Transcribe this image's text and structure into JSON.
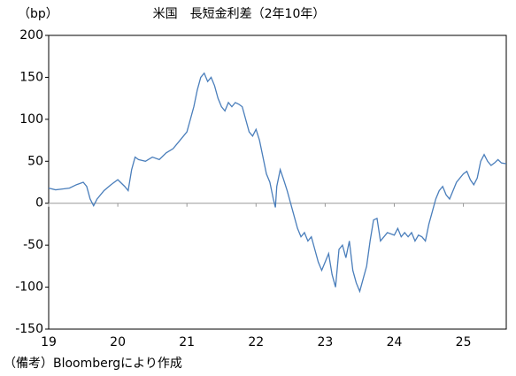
{
  "chart_data": {
    "type": "line",
    "title": "米国　長短金利差（2年10年）",
    "y_label": "（bp）",
    "note": "（備考）Bloombergにより作成",
    "x": [
      19.0,
      19.1,
      19.2,
      19.3,
      19.4,
      19.5,
      19.55,
      19.6,
      19.65,
      19.7,
      19.8,
      19.9,
      20.0,
      20.1,
      20.15,
      20.2,
      20.25,
      20.3,
      20.4,
      20.5,
      20.6,
      20.7,
      20.8,
      20.9,
      21.0,
      21.05,
      21.1,
      21.15,
      21.2,
      21.25,
      21.3,
      21.35,
      21.4,
      21.45,
      21.5,
      21.55,
      21.6,
      21.65,
      21.7,
      21.75,
      21.8,
      21.85,
      21.9,
      21.95,
      22.0,
      22.05,
      22.1,
      22.15,
      22.2,
      22.25,
      22.28,
      22.3,
      22.35,
      22.4,
      22.45,
      22.5,
      22.55,
      22.6,
      22.65,
      22.7,
      22.75,
      22.8,
      22.85,
      22.9,
      22.95,
      23.0,
      23.05,
      23.1,
      23.15,
      23.2,
      23.25,
      23.3,
      23.35,
      23.4,
      23.45,
      23.5,
      23.55,
      23.6,
      23.65,
      23.7,
      23.75,
      23.8,
      23.85,
      23.9,
      24.0,
      24.05,
      24.1,
      24.15,
      24.2,
      24.25,
      24.3,
      24.35,
      24.4,
      24.45,
      24.5,
      24.55,
      24.6,
      24.65,
      24.7,
      24.75,
      24.8,
      24.85,
      24.9,
      25.0,
      25.05,
      25.1,
      25.15,
      25.2,
      25.25,
      25.3,
      25.35,
      25.4,
      25.45,
      25.5,
      25.55,
      25.62
    ],
    "series": [
      {
        "color": "#4a7ebb",
        "values": [
          18,
          16,
          17,
          18,
          22,
          25,
          20,
          5,
          -3,
          5,
          15,
          22,
          28,
          20,
          15,
          40,
          55,
          52,
          50,
          55,
          52,
          60,
          65,
          75,
          85,
          100,
          115,
          135,
          150,
          155,
          145,
          150,
          140,
          125,
          115,
          110,
          120,
          115,
          120,
          118,
          115,
          100,
          85,
          80,
          88,
          75,
          55,
          35,
          25,
          5,
          -5,
          20,
          40,
          28,
          15,
          0,
          -15,
          -30,
          -40,
          -35,
          -45,
          -40,
          -55,
          -70,
          -80,
          -70,
          -60,
          -85,
          -100,
          -55,
          -50,
          -65,
          -45,
          -80,
          -95,
          -105,
          -90,
          -75,
          -45,
          -20,
          -18,
          -45,
          -40,
          -35,
          -38,
          -30,
          -40,
          -35,
          -40,
          -35,
          -45,
          -38,
          -40,
          -45,
          -25,
          -10,
          5,
          15,
          20,
          10,
          5,
          15,
          25,
          35,
          38,
          28,
          22,
          30,
          50,
          58,
          50,
          45,
          48,
          52,
          48,
          47
        ]
      }
    ],
    "xlim": [
      19,
      25.62
    ],
    "xticks": [
      19,
      20,
      21,
      22,
      23,
      24,
      25
    ],
    "ylim": [
      -150,
      200
    ],
    "yticks": [
      -150,
      -100,
      -50,
      0,
      50,
      100,
      150,
      200
    ]
  }
}
